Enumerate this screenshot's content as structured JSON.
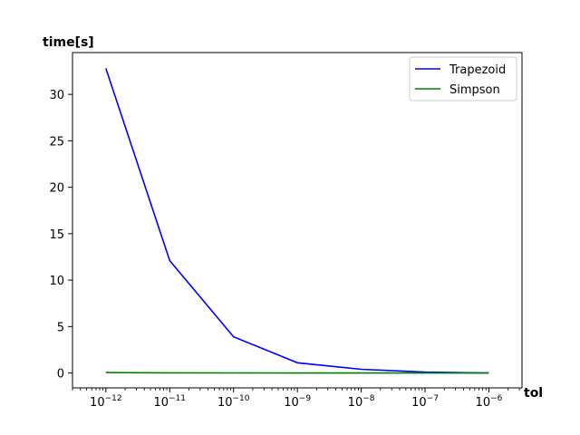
{
  "chart_data": {
    "type": "line",
    "xscale": "log",
    "xlabel": "tol",
    "ylabel": "time[s]",
    "x": [
      1e-12,
      1e-11,
      1e-10,
      1e-09,
      1e-08,
      1e-07,
      1e-06
    ],
    "x_tick_labels": [
      {
        "base": "10",
        "exp": "−12"
      },
      {
        "base": "10",
        "exp": "−11"
      },
      {
        "base": "10",
        "exp": "−10"
      },
      {
        "base": "10",
        "exp": "−9"
      },
      {
        "base": "10",
        "exp": "−8"
      },
      {
        "base": "10",
        "exp": "−7"
      },
      {
        "base": "10",
        "exp": "−6"
      }
    ],
    "y_ticks": [
      0,
      5,
      10,
      15,
      20,
      25,
      30
    ],
    "ylim": [
      -1.6,
      34.5
    ],
    "xlim": [
      3e-13,
      3.3e-06
    ],
    "grid": false,
    "legend_position": "top-right",
    "series": [
      {
        "name": "Trapezoid",
        "color": "#0000ff",
        "values": [
          32.8,
          12.1,
          3.9,
          1.1,
          0.4,
          0.1,
          0.0
        ]
      },
      {
        "name": "Simpson",
        "color": "#008000",
        "values": [
          0.05,
          0.02,
          0.01,
          0.0,
          0.0,
          0.0,
          0.0
        ]
      }
    ]
  }
}
